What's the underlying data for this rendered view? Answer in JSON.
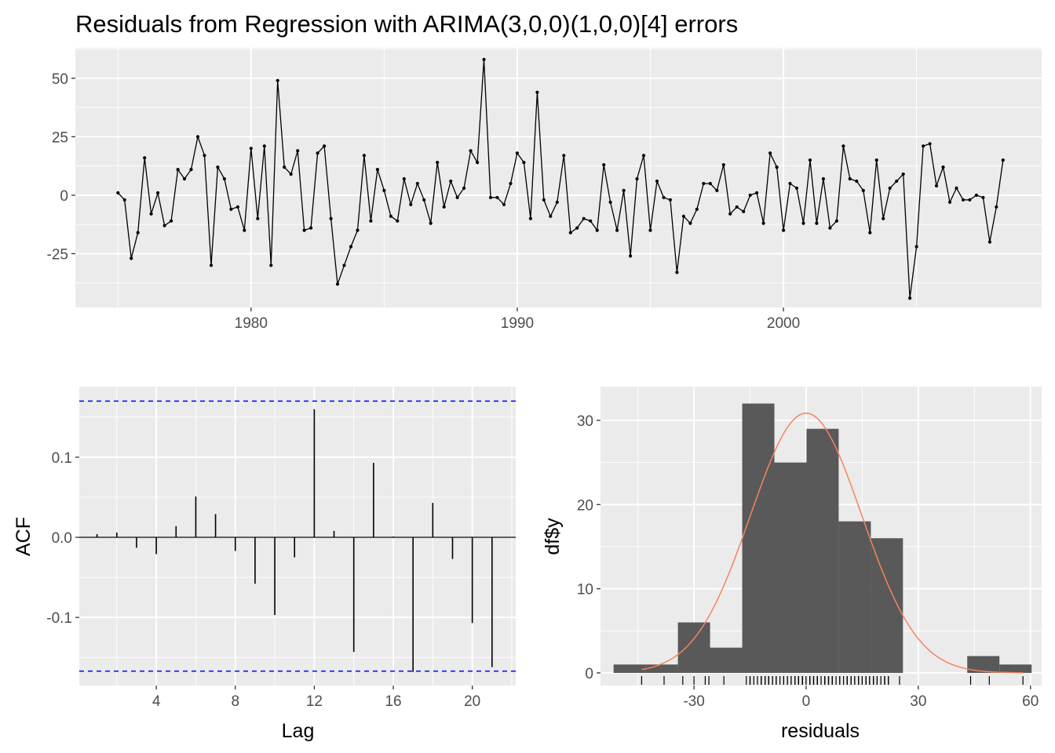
{
  "chart_data": [
    {
      "type": "line",
      "title": "Residuals from Regression with ARIMA(3,0,0)(1,0,0)[4] errors",
      "xlabel": "",
      "ylabel": "",
      "x_start": 1975.0,
      "x_step": 0.25,
      "xlim": [
        1973.4,
        2009.7
      ],
      "ylim": [
        -48,
        63
      ],
      "x_ticks": [
        1980,
        1990,
        2000
      ],
      "x_tick_labels": [
        "1980",
        "1990",
        "2000"
      ],
      "y_ticks": [
        -25,
        0,
        25,
        50
      ],
      "y_tick_labels": [
        "-25",
        "0",
        "25",
        "50"
      ],
      "values": [
        1,
        -2,
        -27,
        -16,
        16,
        -8,
        1,
        -13,
        -11,
        11,
        7,
        11,
        25,
        17,
        -30,
        12,
        7,
        -6,
        -5,
        -15,
        20,
        -10,
        21,
        -30,
        49,
        12,
        9,
        19,
        -15,
        -14,
        18,
        21,
        -10,
        -38,
        -30,
        -22,
        -15,
        17,
        -11,
        11,
        2,
        -9,
        -11,
        7,
        -4,
        5,
        -2,
        -12,
        14,
        -5,
        6,
        -1,
        3,
        19,
        14,
        58,
        -1,
        -1,
        -4,
        5,
        18,
        14,
        -10,
        44,
        -2,
        -9,
        -3,
        17,
        -16,
        -14,
        -10,
        -11,
        -15,
        13,
        -3,
        -15,
        2,
        -26,
        7,
        17,
        -15,
        6,
        -1,
        -2,
        -33,
        -9,
        -12,
        -6,
        5,
        5,
        2,
        13,
        -8,
        -5,
        -7,
        0,
        1,
        -12,
        18,
        12,
        -15,
        5,
        3,
        -12,
        15,
        -12,
        7,
        -14,
        -11,
        21,
        7,
        6,
        2,
        -16,
        15,
        -10,
        3,
        6,
        9,
        -44,
        -22,
        21,
        22,
        4,
        12,
        -3,
        3,
        -2,
        -2,
        0,
        -1,
        -20,
        -5,
        15
      ],
      "grid": true,
      "legend": "none"
    },
    {
      "type": "bar",
      "title": "",
      "xlabel": "Lag",
      "ylabel": "ACF",
      "xlim": [
        0.1,
        22.2
      ],
      "ylim": [
        -0.185,
        0.188
      ],
      "x_ticks": [
        4,
        8,
        12,
        16,
        20
      ],
      "x_tick_labels": [
        "4",
        "8",
        "12",
        "16",
        "20"
      ],
      "y_ticks": [
        -0.1,
        0.0,
        0.1
      ],
      "y_tick_labels": [
        "-0.1",
        "0.0",
        "0.1"
      ],
      "lags": [
        1,
        2,
        3,
        4,
        5,
        6,
        7,
        8,
        9,
        10,
        11,
        12,
        13,
        14,
        15,
        16,
        17,
        18,
        19,
        20,
        21
      ],
      "values": [
        0.004,
        0.006,
        -0.013,
        -0.021,
        0.014,
        0.051,
        0.029,
        -0.017,
        -0.058,
        -0.097,
        -0.025,
        0.16,
        0.008,
        -0.143,
        0.093,
        0.001,
        -0.168,
        0.043,
        -0.027,
        -0.107,
        -0.162
      ],
      "confidence_limits": [
        0.17,
        -0.167
      ],
      "grid": true,
      "legend": "none"
    },
    {
      "type": "bar",
      "subtype": "histogram",
      "title": "",
      "xlabel": "residuals",
      "ylabel": "df$y",
      "xlim": [
        -55,
        63
      ],
      "ylim": [
        -1.5,
        34
      ],
      "x_ticks": [
        -30,
        0,
        30,
        60
      ],
      "x_tick_labels": [
        "-30",
        "0",
        "30",
        "60"
      ],
      "y_ticks": [
        0,
        10,
        20,
        30
      ],
      "y_tick_labels": [
        "0",
        "10",
        "20",
        "30"
      ],
      "bin_edges": [
        -51.5,
        -42.9,
        -34.3,
        -25.7,
        -17.1,
        -8.5,
        0.1,
        8.7,
        17.3,
        25.9,
        34.5,
        43.1,
        51.7,
        60.3
      ],
      "values": [
        1,
        1,
        6,
        3,
        32,
        25,
        29,
        18,
        16,
        0,
        0,
        2,
        1
      ],
      "density_curve": {
        "mean": 0,
        "sd": 14.9,
        "n": 134,
        "bin_width": 8.6
      },
      "rug": [
        -44,
        -38,
        -33,
        -30,
        -27,
        -26,
        -22,
        -16,
        -15,
        -15,
        -15,
        -14,
        -13,
        -12,
        -12,
        -12,
        -11,
        -11,
        -11,
        -10,
        -10,
        -10,
        -9,
        -9,
        -8,
        -8,
        -7,
        -6,
        -6,
        -5,
        -5,
        -4,
        -4,
        -3,
        -3,
        -2,
        -2,
        -2,
        -2,
        -1,
        -1,
        -1,
        -1,
        0,
        0,
        1,
        1,
        1,
        2,
        2,
        2,
        3,
        3,
        3,
        4,
        5,
        5,
        5,
        5,
        6,
        6,
        6,
        7,
        7,
        7,
        7,
        8,
        9,
        9,
        10,
        11,
        11,
        11,
        12,
        12,
        12,
        13,
        13,
        14,
        14,
        14,
        15,
        15,
        16,
        16,
        17,
        17,
        17,
        18,
        18,
        19,
        19,
        20,
        21,
        21,
        21,
        22,
        22,
        25,
        44,
        49,
        58
      ],
      "grid": true,
      "legend": "none"
    }
  ]
}
